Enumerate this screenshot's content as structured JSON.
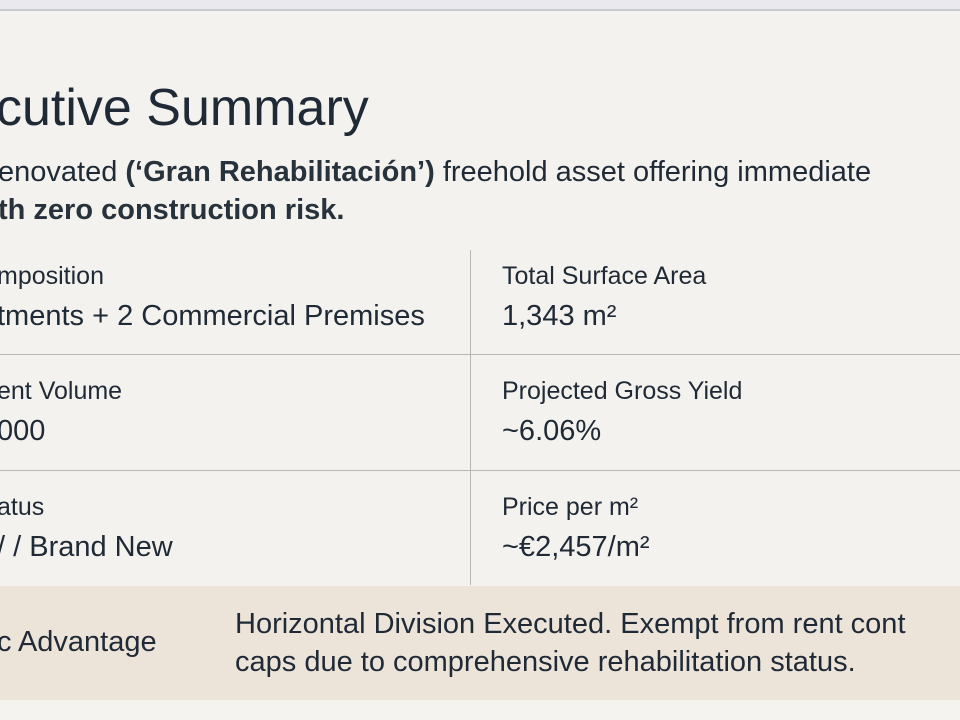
{
  "header": {
    "title": "cutive Summary",
    "subtitle": [
      [
        "enovated ",
        "(‘Gran Rehabilitación’)",
        " freehold asset offering immediate"
      ],
      [
        "th zero construction risk."
      ]
    ]
  },
  "table": {
    "rows": [
      [
        {
          "label": "mposition",
          "value": "tments + 2 Commercial Premises"
        },
        {
          "label": "Total Surface Area",
          "value": "1,343 m²"
        }
      ],
      [
        {
          "label": "ent Volume",
          "value": "000"
        },
        {
          "label": "Projected Gross Yield",
          "value": "~6.06%"
        }
      ],
      [
        {
          "label": "atus",
          "value": "/ / Brand New"
        },
        {
          "label": "Price per m²",
          "value": "~€2,457/m²"
        }
      ]
    ]
  },
  "advantage": {
    "label": "c Advantage",
    "lines": [
      "Horizontal Division Executed. Exempt from rent cont",
      "caps due to comprehensive rehabilitation status."
    ]
  }
}
